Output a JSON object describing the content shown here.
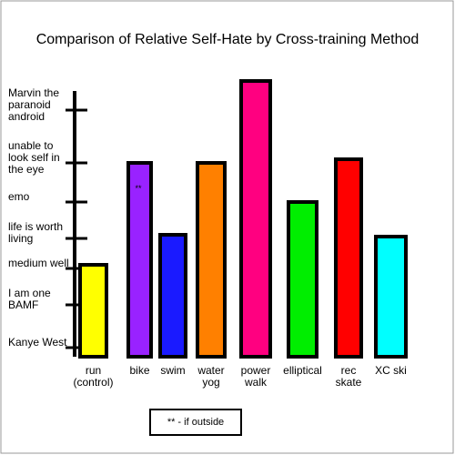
{
  "chart_data": {
    "type": "bar",
    "title": "Comparison of Relative Self-Hate by Cross-training Method",
    "categories": [
      "run (control)",
      "bike",
      "swim",
      "water yog",
      "power walk",
      "elliptical",
      "rec skate",
      "XC ski"
    ],
    "series": [
      {
        "name": null,
        "colors": [
          "#ffff00",
          "#9922ff",
          "#1a1aff",
          "#ff8000",
          "#ff0080",
          "#00ee00",
          "#ff0000",
          "#00ffff"
        ],
        "values": [
          101,
          213,
          134,
          213,
          303,
          170,
          217,
          132
        ]
      }
    ],
    "ylim": [
      0,
      305
    ],
    "yticks": [
      {
        "value": 10,
        "label": "Kanye West"
      },
      {
        "value": 57,
        "label": "I am one BAMF"
      },
      {
        "value": 97,
        "label": "medium well"
      },
      {
        "value": 130,
        "label": "life is worth living"
      },
      {
        "value": 170,
        "label": "emo"
      },
      {
        "value": 213,
        "label": "unable to look self in the eye"
      },
      {
        "value": 271,
        "label": "Marvin the paranoid android"
      }
    ],
    "annotations": [
      "**",
      "** - if outside"
    ]
  }
}
